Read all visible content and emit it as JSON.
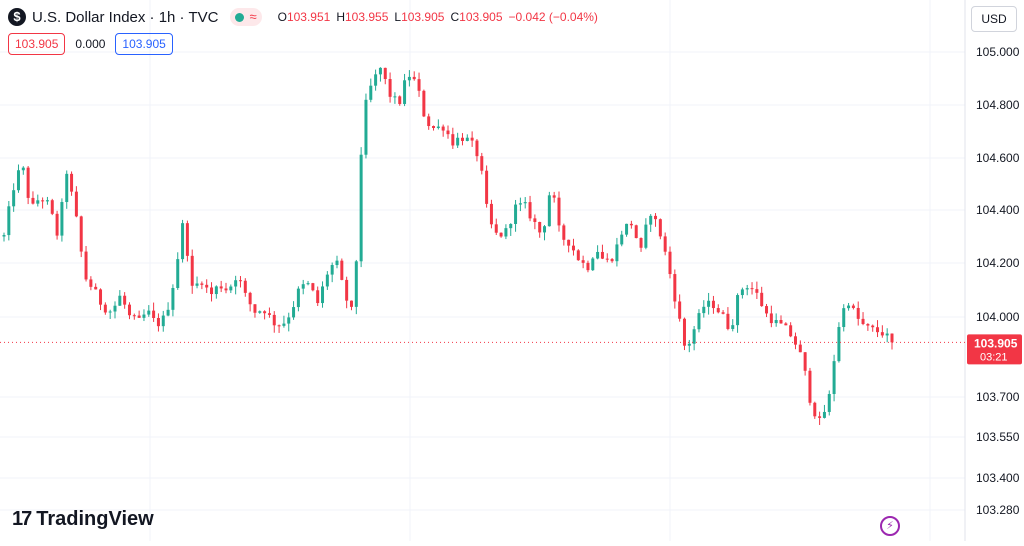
{
  "header": {
    "icon_name": "dollar-sign-icon",
    "icon_glyph": "$",
    "title": "U.S. Dollar Index · 1h · TVC",
    "status_wave": "≈",
    "ohlc": {
      "o_label": "O",
      "o_value": "103.951",
      "h_label": "H",
      "h_value": "103.955",
      "l_label": "L",
      "l_value": "103.905",
      "c_label": "C",
      "c_value": "103.905",
      "change": "−0.042 (−0.04%)"
    }
  },
  "order_panel": {
    "sell_price": "103.905",
    "spread": "0.000",
    "buy_price": "103.905"
  },
  "currency_button": "USD",
  "brand": {
    "mark": "17",
    "name": "TradingView"
  },
  "replay_icon": "lightning-icon",
  "colors": {
    "up": "#22ab94",
    "down": "#f23645",
    "grid": "#f0f3fa",
    "axis_text": "#131722"
  },
  "chart_data": {
    "type": "candlestick",
    "title": "U.S. Dollar Index · 1h · TVC",
    "ylim": [
      103.28,
      105.05
    ],
    "y_ticks": [
      {
        "value": 105.0,
        "label": "105.000"
      },
      {
        "value": 104.8,
        "label": "104.800"
      },
      {
        "value": 104.6,
        "label": "104.600"
      },
      {
        "value": 104.4,
        "label": "104.400"
      },
      {
        "value": 104.2,
        "label": "104.200"
      },
      {
        "value": 104.0,
        "label": "104.000"
      },
      {
        "value": 103.7,
        "label": "103.700"
      },
      {
        "value": 103.55,
        "label": "103.550"
      },
      {
        "value": 103.4,
        "label": "103.400"
      },
      {
        "value": 103.28,
        "label": "103.280"
      }
    ],
    "last_price": {
      "value": 103.905,
      "label": "103.905",
      "countdown": "03:21"
    },
    "grid": true,
    "close_path": [
      104.3,
      104.48,
      104.58,
      104.4,
      104.45,
      104.42,
      104.3,
      104.55,
      104.38,
      104.15,
      104.1,
      104.04,
      104.02,
      104.08,
      104.0,
      103.98,
      104.02,
      103.97,
      104.0,
      104.14,
      104.36,
      104.1,
      104.14,
      104.08,
      104.12,
      104.1,
      104.16,
      104.07,
      104.02,
      104.03,
      103.98,
      103.97,
      104.02,
      104.11,
      104.12,
      104.05,
      104.16,
      104.21,
      104.08,
      104.0,
      104.76,
      104.88,
      104.94,
      104.84,
      104.8,
      104.92,
      104.88,
      104.74,
      104.71,
      104.72,
      104.66,
      104.68,
      104.66,
      104.6,
      104.36,
      104.3,
      104.32,
      104.41,
      104.42,
      104.36,
      104.3,
      104.5,
      104.3,
      104.28,
      104.22,
      104.18,
      104.26,
      104.2,
      104.23,
      104.33,
      104.35,
      104.24,
      104.4,
      104.33,
      104.2,
      104.04,
      103.87,
      103.96,
      104.04,
      104.05,
      104.01,
      103.95,
      104.1,
      104.12,
      104.08,
      104.01,
      103.98,
      103.96,
      103.92,
      103.84,
      103.67,
      103.6,
      103.7,
      103.96,
      104.07,
      104.0,
      103.96,
      103.95,
      103.94,
      103.905
    ]
  }
}
